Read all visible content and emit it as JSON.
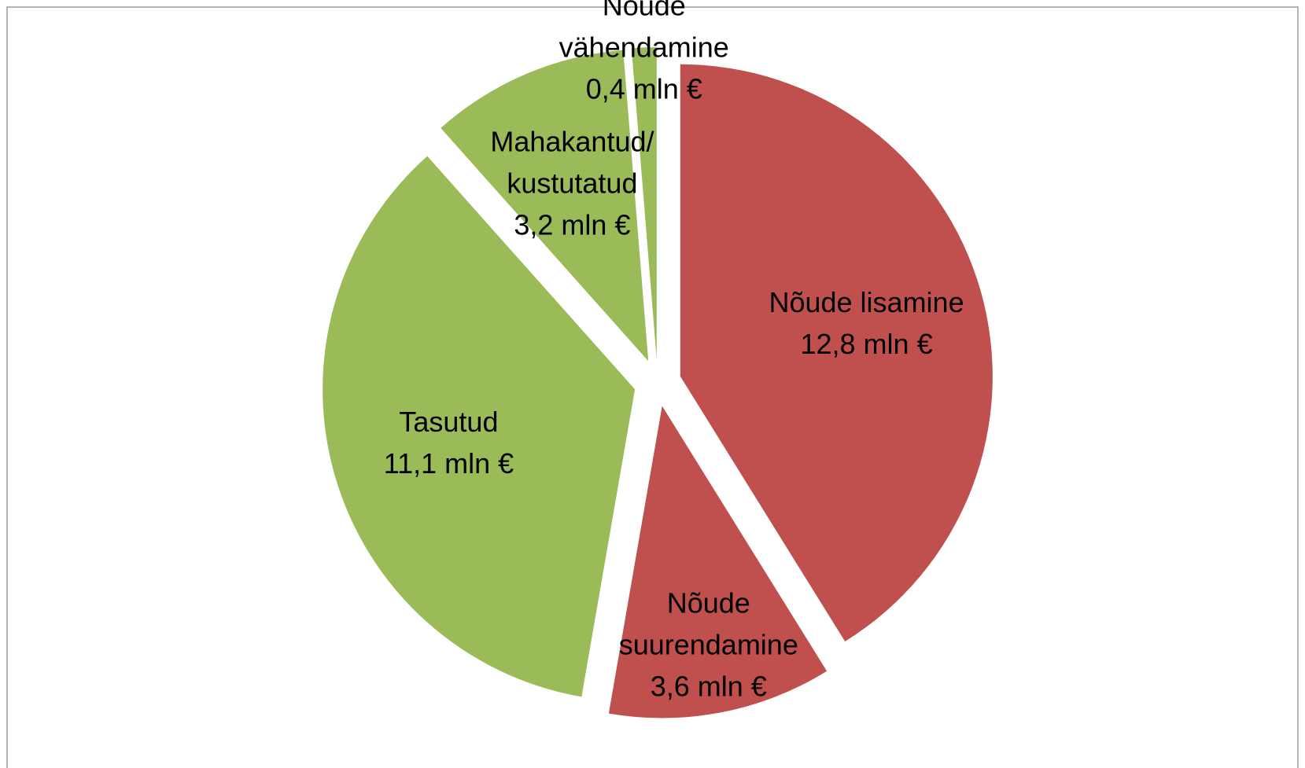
{
  "chart_data": {
    "type": "pie",
    "categories": [
      "Nõude lisamine",
      "Nõude suurendamine",
      "Tasutud",
      "Mahakantud/ kustutatud",
      "Nõude vähendamine"
    ],
    "values": [
      12.8,
      3.6,
      11.1,
      3.2,
      0.4
    ],
    "value_labels": [
      "12,8 mln €",
      "3,6 mln €",
      "11,1 mln €",
      "3,2 mln €",
      "0,4 mln €"
    ],
    "colors": [
      "#c0504d",
      "#c0504d",
      "#9bbb59",
      "#9bbb59",
      "#9bbb59"
    ]
  }
}
